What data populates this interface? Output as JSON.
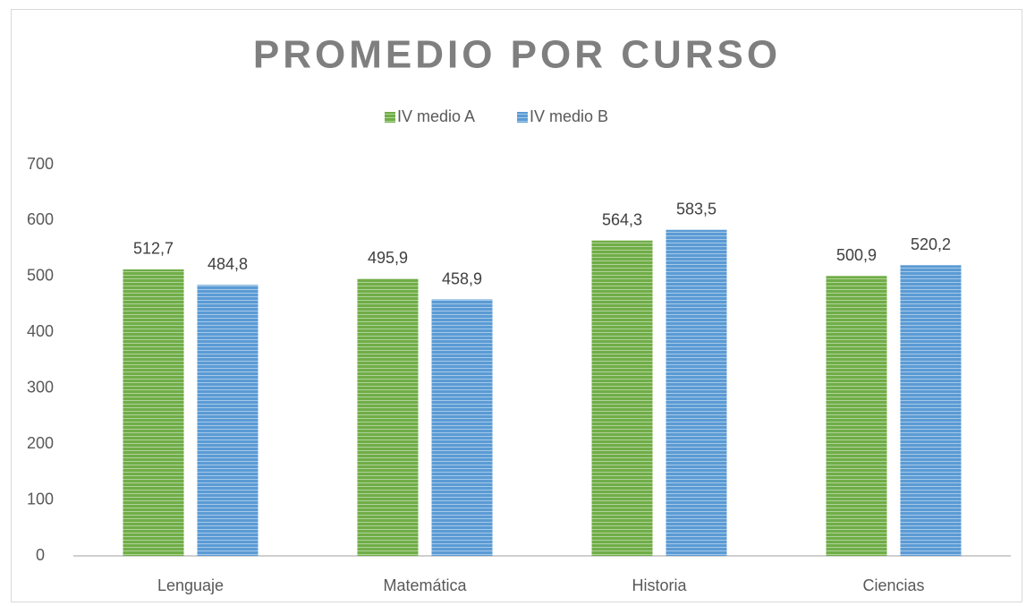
{
  "chart_data": {
    "type": "bar",
    "title": "PROMEDIO POR CURSO",
    "categories": [
      "Lenguaje",
      "Matemática",
      "Historia",
      "Ciencias"
    ],
    "series": [
      {
        "name": "IV medio A",
        "color": "#70ad47",
        "values": [
          512.7,
          495.9,
          564.3,
          500.9
        ],
        "value_labels": [
          "512,7",
          "495,9",
          "564,3",
          "500,9"
        ]
      },
      {
        "name": "IV medio B",
        "color": "#5b9bd5",
        "values": [
          484.8,
          458.9,
          583.5,
          520.2
        ],
        "value_labels": [
          "484,8",
          "458,9",
          "583,5",
          "520,2"
        ]
      }
    ],
    "ylim": [
      0,
      700
    ],
    "yticks": [
      0,
      100,
      200,
      300,
      400,
      500,
      600,
      700
    ],
    "grid": false,
    "legend": "top"
  }
}
